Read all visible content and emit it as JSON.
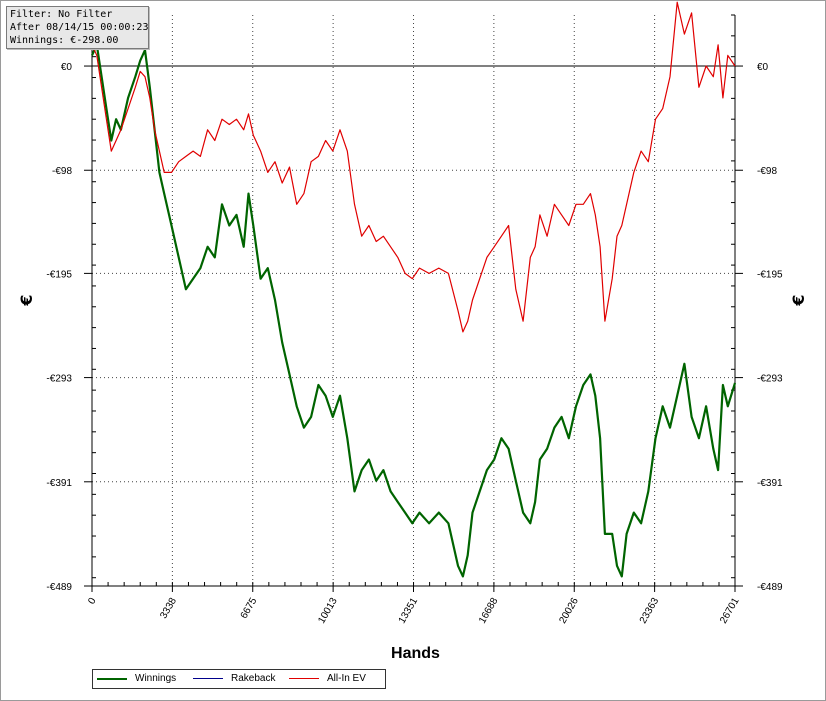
{
  "info_box": {
    "filter": "Filter: No Filter",
    "after": "After 08/14/15 00:00:23",
    "winnings": "Winnings: €-298.00"
  },
  "chart_data": {
    "type": "line",
    "xlabel": "Hands",
    "ylabel": "€",
    "xlim": [
      0,
      26701
    ],
    "ylim": [
      -489,
      48
    ],
    "x_ticks": [
      0,
      3338,
      6675,
      10013,
      13351,
      16688,
      20026,
      23363,
      26701
    ],
    "x_tick_labels": [
      "0",
      "3338",
      "6675",
      "10013",
      "13351",
      "16688",
      "20026",
      "23363",
      "26701"
    ],
    "y_ticks": [
      0,
      -98,
      -195,
      -293,
      -391,
      -489
    ],
    "y_tick_labels": [
      "€0",
      "-€98",
      "-€195",
      "-€293",
      "-€391",
      "-€489"
    ],
    "grid": true,
    "legend": "bottom-left",
    "series": [
      {
        "name": "Winnings",
        "color": "#006400",
        "x": [
          0,
          200,
          400,
          600,
          800,
          1000,
          1200,
          1500,
          1800,
          2000,
          2200,
          2400,
          2600,
          2800,
          3000,
          3300,
          3600,
          3900,
          4200,
          4500,
          4800,
          5100,
          5400,
          5700,
          6000,
          6300,
          6500,
          6700,
          7000,
          7300,
          7600,
          7900,
          8200,
          8500,
          8800,
          9100,
          9400,
          9700,
          10000,
          10300,
          10600,
          10900,
          11200,
          11500,
          11800,
          12100,
          12400,
          12700,
          13000,
          13300,
          13600,
          14000,
          14400,
          14800,
          15200,
          15400,
          15600,
          15800,
          16100,
          16400,
          16700,
          17000,
          17300,
          17600,
          17900,
          18200,
          18400,
          18600,
          18900,
          19200,
          19500,
          19800,
          20100,
          20400,
          20700,
          20900,
          21100,
          21300,
          21600,
          21800,
          22000,
          22200,
          22500,
          22800,
          23100,
          23400,
          23700,
          24000,
          24300,
          24600,
          24900,
          25200,
          25500,
          25800,
          26000,
          26200,
          26400,
          26701
        ],
        "y": [
          10,
          20,
          -10,
          -40,
          -70,
          -50,
          -60,
          -30,
          -10,
          5,
          15,
          -20,
          -60,
          -100,
          -120,
          -150,
          -180,
          -210,
          -200,
          -190,
          -170,
          -180,
          -130,
          -150,
          -140,
          -170,
          -120,
          -150,
          -200,
          -190,
          -220,
          -260,
          -290,
          -320,
          -340,
          -330,
          -300,
          -310,
          -330,
          -310,
          -350,
          -400,
          -380,
          -370,
          -390,
          -380,
          -400,
          -410,
          -420,
          -430,
          -420,
          -430,
          -420,
          -430,
          -470,
          -480,
          -460,
          -420,
          -400,
          -380,
          -370,
          -350,
          -360,
          -390,
          -420,
          -430,
          -410,
          -370,
          -360,
          -340,
          -330,
          -350,
          -320,
          -300,
          -290,
          -310,
          -350,
          -440,
          -440,
          -470,
          -480,
          -440,
          -420,
          -430,
          -400,
          -350,
          -320,
          -340,
          -310,
          -280,
          -330,
          -350,
          -320,
          -360,
          -380,
          -300,
          -320,
          -298
        ]
      },
      {
        "name": "Rakeback",
        "color": "#00008b",
        "x": [],
        "y": []
      },
      {
        "name": "All-In EV",
        "color": "#e00000",
        "x": [
          0,
          200,
          400,
          600,
          800,
          1000,
          1200,
          1500,
          1800,
          2000,
          2200,
          2400,
          2600,
          2800,
          3000,
          3300,
          3600,
          3900,
          4200,
          4500,
          4800,
          5100,
          5400,
          5700,
          6000,
          6300,
          6500,
          6700,
          7000,
          7300,
          7600,
          7900,
          8200,
          8500,
          8800,
          9100,
          9400,
          9700,
          10000,
          10300,
          10600,
          10900,
          11200,
          11500,
          11800,
          12100,
          12400,
          12700,
          13000,
          13300,
          13600,
          14000,
          14400,
          14800,
          15200,
          15400,
          15600,
          15800,
          16100,
          16400,
          16700,
          17000,
          17300,
          17600,
          17900,
          18200,
          18400,
          18600,
          18900,
          19200,
          19500,
          19800,
          20100,
          20400,
          20700,
          20900,
          21100,
          21300,
          21600,
          21800,
          22000,
          22200,
          22500,
          22800,
          23100,
          23400,
          23700,
          24000,
          24300,
          24600,
          24900,
          25200,
          25500,
          25800,
          26000,
          26200,
          26400,
          26701
        ],
        "y": [
          20,
          10,
          -20,
          -50,
          -80,
          -70,
          -60,
          -40,
          -20,
          -5,
          -10,
          -30,
          -60,
          -80,
          -100,
          -100,
          -90,
          -85,
          -80,
          -85,
          -60,
          -70,
          -50,
          -55,
          -50,
          -60,
          -45,
          -65,
          -80,
          -100,
          -90,
          -110,
          -95,
          -130,
          -120,
          -90,
          -85,
          -70,
          -80,
          -60,
          -80,
          -130,
          -160,
          -150,
          -165,
          -160,
          -170,
          -180,
          -195,
          -200,
          -190,
          -195,
          -190,
          -195,
          -230,
          -250,
          -240,
          -220,
          -200,
          -180,
          -170,
          -160,
          -150,
          -210,
          -240,
          -180,
          -170,
          -140,
          -160,
          -130,
          -140,
          -150,
          -130,
          -130,
          -120,
          -140,
          -170,
          -240,
          -200,
          -160,
          -150,
          -130,
          -100,
          -80,
          -90,
          -50,
          -40,
          -10,
          60,
          30,
          50,
          -20,
          0,
          -10,
          20,
          -30,
          10,
          0
        ]
      }
    ]
  },
  "legend": {
    "items": [
      {
        "label": "Winnings",
        "color": "#006400"
      },
      {
        "label": "Rakeback",
        "color": "#00008b"
      },
      {
        "label": "All-In EV",
        "color": "#e00000"
      }
    ]
  }
}
